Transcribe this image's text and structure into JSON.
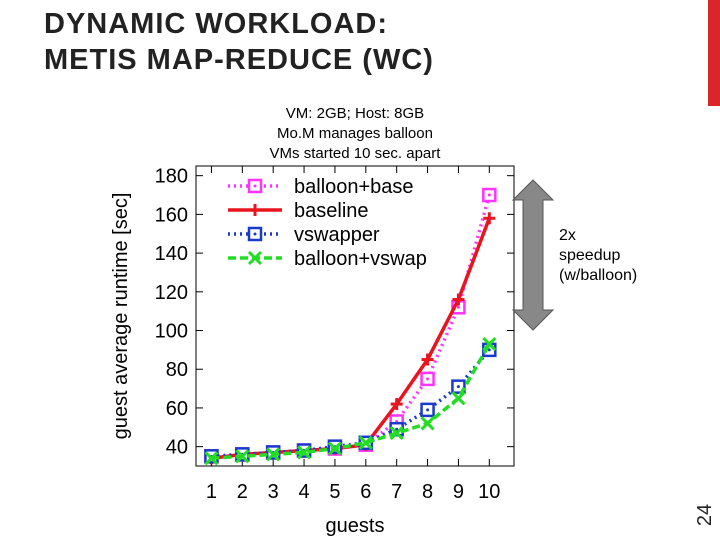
{
  "slide": {
    "title_line1": "DYNAMIC WORKLOAD:",
    "title_line2": "METIS MAP-REDUCE (WC)",
    "page_number": "24",
    "note_lines": [
      "2x",
      "speedup",
      "(w/balloon)"
    ],
    "accent_color": "#d9262b"
  },
  "chart_data": {
    "type": "line",
    "annotation_lines": [
      "VM: 2GB; Host: 8GB",
      "Mo.M manages balloon",
      "VMs started 10 sec. apart"
    ],
    "xlabel": "guests",
    "ylabel": "guest average runtime [sec]",
    "x": [
      1,
      2,
      3,
      4,
      5,
      6,
      7,
      8,
      9,
      10
    ],
    "xlim": [
      0.5,
      10.8
    ],
    "ylim": [
      30,
      185
    ],
    "yticks": [
      40,
      60,
      80,
      100,
      120,
      140,
      160,
      180
    ],
    "legend_position": "top-left",
    "grid": false,
    "series": [
      {
        "name": "balloon+base",
        "color": "#ff33ff",
        "dash": "dot",
        "marker": "square-dot",
        "values": [
          35,
          36,
          37,
          38,
          39,
          41,
          53,
          75,
          112,
          170
        ]
      },
      {
        "name": "baseline",
        "color": "#e8141e",
        "dash": "solid",
        "marker": "plus",
        "values": [
          34,
          36,
          37,
          38,
          39,
          41,
          62,
          85,
          116,
          158
        ]
      },
      {
        "name": "vswapper",
        "color": "#1a3acc",
        "dash": "dot",
        "marker": "square-c",
        "values": [
          35,
          36,
          37,
          38,
          40,
          42,
          49,
          59,
          71,
          90
        ]
      },
      {
        "name": "balloon+vswap",
        "color": "#22dd22",
        "dash": "dash",
        "marker": "x",
        "values": [
          34,
          35,
          36,
          37,
          39,
          42,
          47,
          52,
          65,
          93
        ]
      }
    ]
  }
}
